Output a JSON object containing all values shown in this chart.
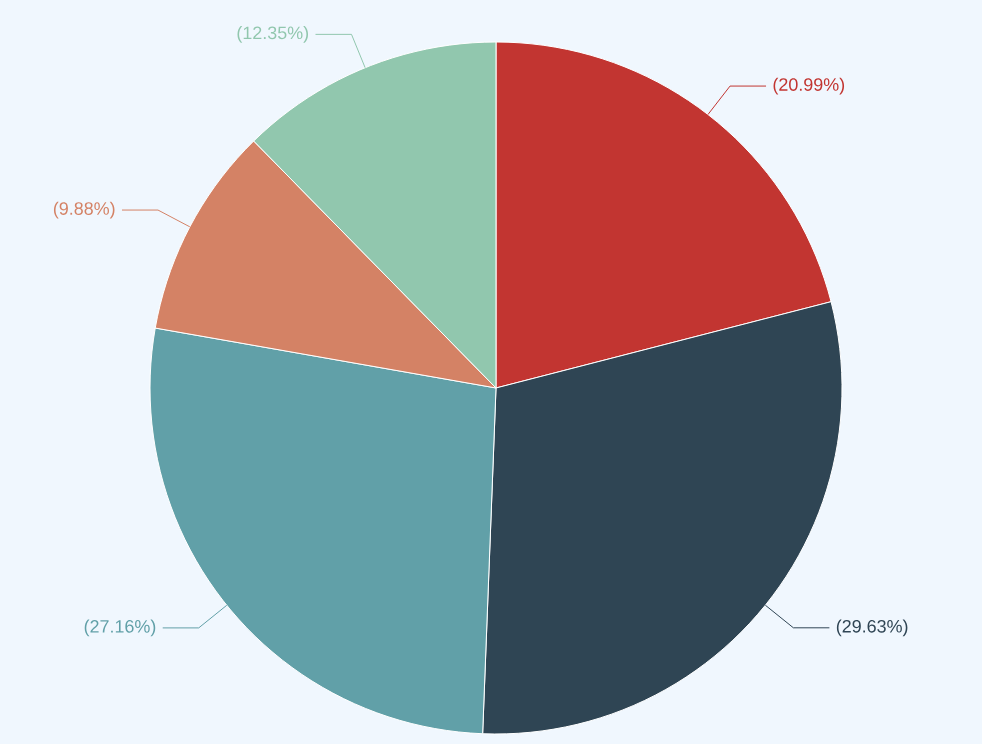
{
  "chart_data": {
    "type": "pie",
    "categories": [
      null,
      null,
      null,
      null,
      null
    ],
    "values": [
      20.99,
      29.63,
      27.16,
      9.88,
      12.35
    ],
    "colors": [
      "#c23531",
      "#2f4554",
      "#61a0a8",
      "#d48265",
      "#91c7ae"
    ],
    "value_labels": [
      "(20.99%)",
      "(29.63%)",
      "(27.16%)",
      "(9.88%)",
      "(12.35%)"
    ]
  }
}
